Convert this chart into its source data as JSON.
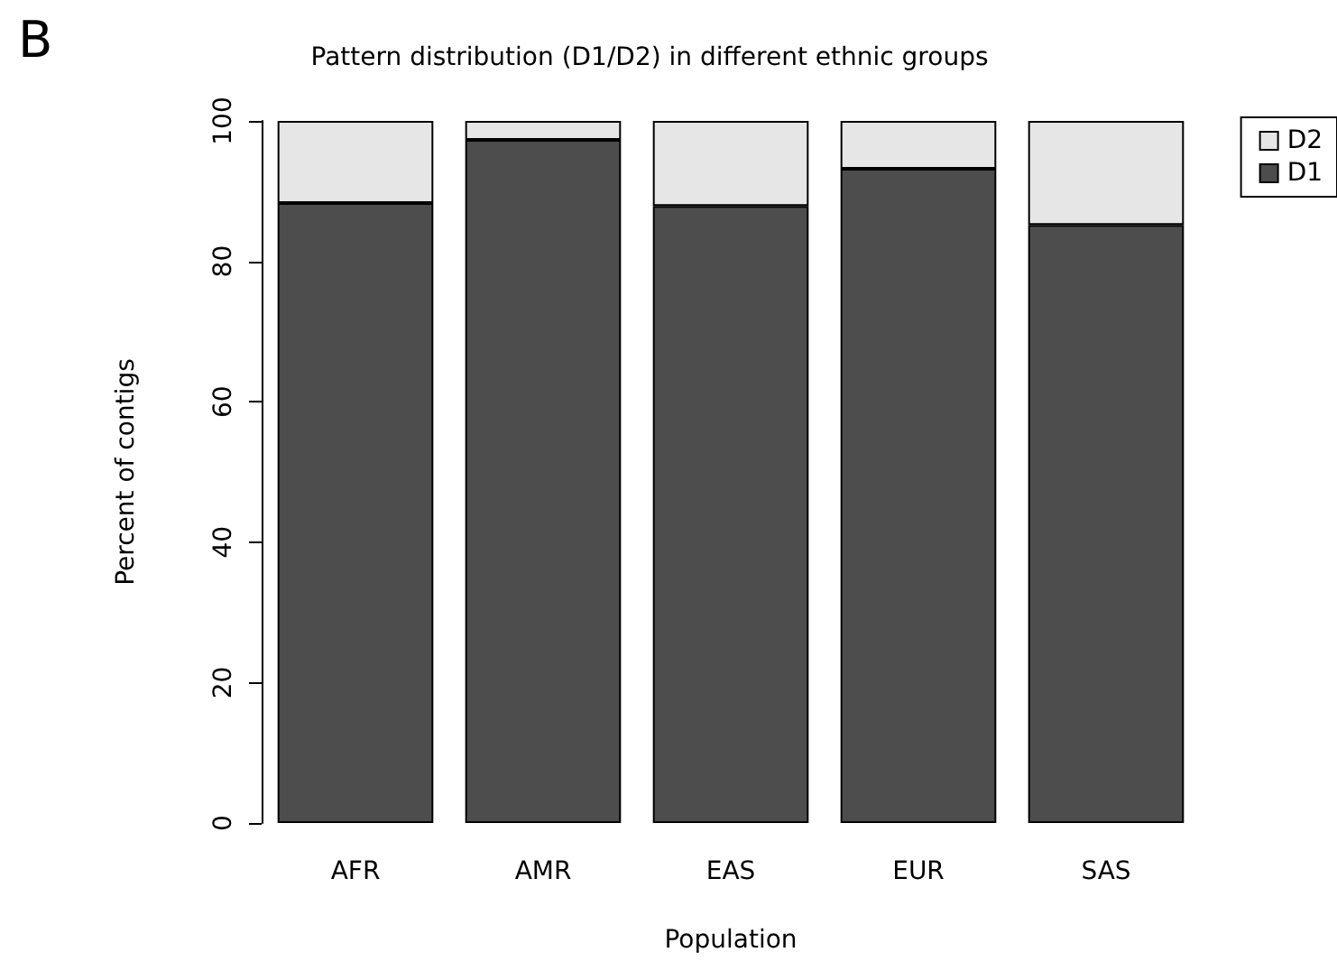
{
  "chart_data": {
    "type": "bar",
    "title": "Pattern distribution (D1/D2) in different ethnic groups",
    "xlabel": "Population",
    "ylabel": "Percent of contigs",
    "annotations": [
      "B"
    ],
    "categories": [
      "AFR",
      "AMR",
      "EAS",
      "EUR",
      "SAS"
    ],
    "series": [
      {
        "name": "D1",
        "color": "#4d4d4d",
        "values": [
          88.3,
          97.3,
          87.9,
          93.2,
          85.2
        ]
      },
      {
        "name": "D2",
        "color": "#e6e6e6",
        "values": [
          11.7,
          2.7,
          12.1,
          6.8,
          14.8
        ]
      }
    ],
    "stacked": true,
    "ylim": [
      0,
      100
    ],
    "yticks": [
      0,
      20,
      40,
      60,
      80,
      100
    ],
    "grid": false,
    "legend": "top right"
  }
}
